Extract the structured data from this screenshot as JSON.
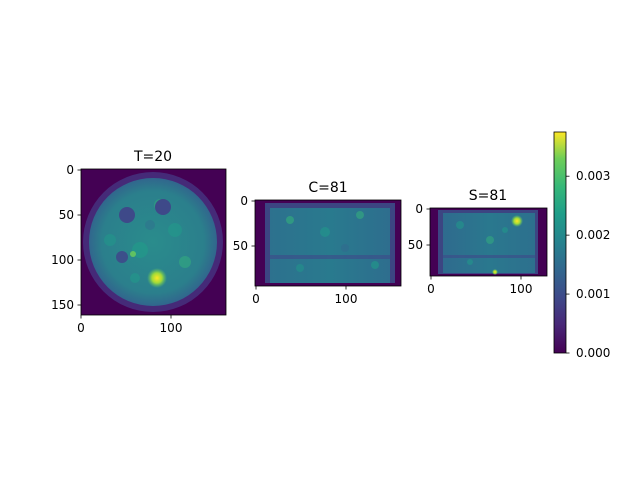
{
  "chart_data": {
    "type": "heatmap",
    "colormap": "viridis",
    "panels": [
      {
        "title": "T=20",
        "shape": [
          160,
          160
        ],
        "xticks": [
          0,
          100
        ],
        "yticks": [
          0,
          50,
          100,
          150
        ],
        "content": "circular phantom cross-section"
      },
      {
        "title": "C=81",
        "shape": [
          95,
          160
        ],
        "xticks": [
          0,
          100
        ],
        "yticks": [
          0,
          50
        ],
        "content": "rectangular phantom cross-section"
      },
      {
        "title": "S=81",
        "shape": [
          75,
          130
        ],
        "xticks": [
          0,
          100
        ],
        "yticks": [
          0,
          50
        ],
        "content": "rectangular phantom cross-section"
      }
    ],
    "colorbar": {
      "range": [
        0,
        0.00375
      ],
      "ticks": [
        "0.000",
        "0.001",
        "0.002",
        "0.003"
      ],
      "tick_values": [
        0,
        0.001,
        0.002,
        0.003
      ]
    }
  }
}
